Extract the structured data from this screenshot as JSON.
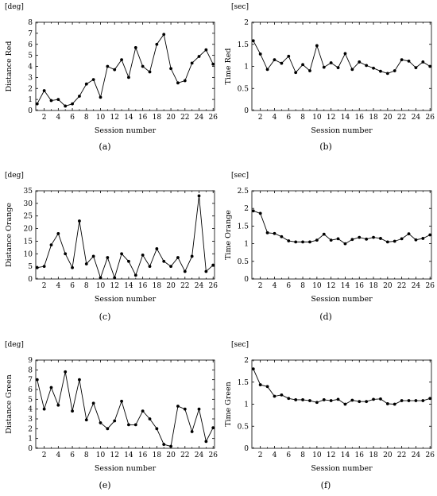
{
  "chart_data": [
    {
      "type": "line",
      "caption": "(a)",
      "unit": "[deg]",
      "ylabel": "Distance Red",
      "xlabel": "Session number",
      "x": [
        1,
        2,
        3,
        4,
        5,
        6,
        7,
        8,
        9,
        10,
        11,
        12,
        13,
        14,
        15,
        16,
        17,
        18,
        19,
        20,
        21,
        22,
        23,
        24,
        25,
        26
      ],
      "values": [
        0.6,
        1.8,
        0.9,
        1.0,
        0.4,
        0.6,
        1.3,
        2.4,
        2.8,
        1.2,
        4.0,
        3.7,
        4.6,
        3.0,
        5.7,
        4.0,
        3.5,
        6.0,
        6.9,
        3.8,
        2.5,
        2.7,
        4.3,
        4.9,
        5.5,
        4.2
      ],
      "xticks": [
        2,
        4,
        6,
        8,
        10,
        12,
        14,
        16,
        18,
        20,
        22,
        24,
        26
      ],
      "yticks": [
        0,
        1,
        2,
        3,
        4,
        5,
        6,
        7,
        8
      ],
      "ytick_labels": [
        "0",
        "1",
        "2",
        "3",
        "4",
        "5",
        "6",
        "7",
        "8"
      ],
      "xlim": [
        0.8,
        26.2
      ],
      "ylim": [
        0,
        8
      ]
    },
    {
      "type": "line",
      "caption": "(b)",
      "unit": "[sec]",
      "ylabel": "Time Red",
      "xlabel": "Session number",
      "x": [
        1,
        2,
        3,
        4,
        5,
        6,
        7,
        8,
        9,
        10,
        11,
        12,
        13,
        14,
        15,
        16,
        17,
        18,
        19,
        20,
        21,
        22,
        23,
        24,
        25,
        26
      ],
      "values": [
        1.58,
        1.28,
        0.93,
        1.15,
        1.07,
        1.23,
        0.86,
        1.04,
        0.9,
        1.47,
        0.98,
        1.08,
        0.97,
        1.29,
        0.93,
        1.1,
        1.02,
        0.96,
        0.89,
        0.84,
        0.9,
        1.15,
        1.12,
        0.97,
        1.1,
        1.0
      ],
      "xticks": [
        2,
        4,
        6,
        8,
        10,
        12,
        14,
        16,
        18,
        20,
        22,
        24,
        26
      ],
      "yticks": [
        0,
        0.5,
        1,
        1.5,
        2
      ],
      "ytick_labels": [
        "0",
        "0.5",
        "1",
        "1.5",
        "2"
      ],
      "xlim": [
        0.8,
        26.2
      ],
      "ylim": [
        0,
        2
      ]
    },
    {
      "type": "line",
      "caption": "(c)",
      "unit": "[deg]",
      "ylabel": "Distance Orange",
      "xlabel": "Session number",
      "x": [
        1,
        2,
        3,
        4,
        5,
        6,
        7,
        8,
        9,
        10,
        11,
        12,
        13,
        14,
        15,
        16,
        17,
        18,
        19,
        20,
        21,
        22,
        23,
        24,
        25,
        26
      ],
      "values": [
        4.5,
        5.0,
        13.5,
        18.0,
        10.0,
        4.5,
        23.0,
        6.0,
        9.0,
        0.5,
        8.5,
        0.5,
        10.0,
        7.0,
        1.5,
        9.5,
        5.0,
        12.0,
        7.0,
        5.0,
        8.5,
        3.0,
        9.0,
        33.0,
        3.0,
        5.5
      ],
      "xticks": [
        2,
        4,
        6,
        8,
        10,
        12,
        14,
        16,
        18,
        20,
        22,
        24,
        26
      ],
      "yticks": [
        0,
        5,
        10,
        15,
        20,
        25,
        30,
        35
      ],
      "ytick_labels": [
        "0",
        "5",
        "10",
        "15",
        "20",
        "25",
        "30",
        "35"
      ],
      "xlim": [
        0.8,
        26.2
      ],
      "ylim": [
        0,
        35
      ]
    },
    {
      "type": "line",
      "caption": "(d)",
      "unit": "[sec]",
      "ylabel": "Time Orange",
      "xlabel": "Session number",
      "x": [
        1,
        2,
        3,
        4,
        5,
        6,
        7,
        8,
        9,
        10,
        11,
        12,
        13,
        14,
        15,
        16,
        17,
        18,
        19,
        20,
        21,
        22,
        23,
        24,
        25,
        26
      ],
      "values": [
        1.93,
        1.86,
        1.31,
        1.29,
        1.2,
        1.08,
        1.05,
        1.05,
        1.05,
        1.1,
        1.27,
        1.1,
        1.14,
        1.0,
        1.12,
        1.18,
        1.13,
        1.18,
        1.15,
        1.05,
        1.07,
        1.14,
        1.28,
        1.11,
        1.15,
        1.25
      ],
      "xticks": [
        2,
        4,
        6,
        8,
        10,
        12,
        14,
        16,
        18,
        20,
        22,
        24,
        26
      ],
      "yticks": [
        0,
        0.5,
        1,
        1.5,
        2,
        2.5
      ],
      "ytick_labels": [
        "0",
        "0.5",
        "1",
        "1.5",
        "2",
        "2.5"
      ],
      "xlim": [
        0.8,
        26.2
      ],
      "ylim": [
        0,
        2.5
      ]
    },
    {
      "type": "line",
      "caption": "(e)",
      "unit": "[deg]",
      "ylabel": "Distance Green",
      "xlabel": "Session number",
      "x": [
        1,
        2,
        3,
        4,
        5,
        6,
        7,
        8,
        9,
        10,
        11,
        12,
        13,
        14,
        15,
        16,
        17,
        18,
        19,
        20,
        21,
        22,
        23,
        24,
        25,
        26
      ],
      "values": [
        7.0,
        4.0,
        6.2,
        4.4,
        7.8,
        3.8,
        7.0,
        2.9,
        4.6,
        2.6,
        2.0,
        2.8,
        4.8,
        2.4,
        2.4,
        3.8,
        3.0,
        2.0,
        0.4,
        0.2,
        4.3,
        4.0,
        1.7,
        4.0,
        0.7,
        2.1
      ],
      "xticks": [
        2,
        4,
        6,
        8,
        10,
        12,
        14,
        16,
        18,
        20,
        22,
        24,
        26
      ],
      "yticks": [
        0,
        1,
        2,
        3,
        4,
        5,
        6,
        7,
        8,
        9
      ],
      "ytick_labels": [
        "0",
        "1",
        "2",
        "3",
        "4",
        "5",
        "6",
        "7",
        "8",
        "9"
      ],
      "xlim": [
        0.8,
        26.2
      ],
      "ylim": [
        0,
        9
      ]
    },
    {
      "type": "line",
      "caption": "(f)",
      "unit": "[sec]",
      "ylabel": "Time Green",
      "xlabel": "Session number",
      "x": [
        1,
        2,
        3,
        4,
        5,
        6,
        7,
        8,
        9,
        10,
        11,
        12,
        13,
        14,
        15,
        16,
        17,
        18,
        19,
        20,
        21,
        22,
        23,
        24,
        25,
        26
      ],
      "values": [
        1.8,
        1.44,
        1.4,
        1.18,
        1.21,
        1.13,
        1.1,
        1.1,
        1.08,
        1.04,
        1.1,
        1.08,
        1.11,
        1.0,
        1.09,
        1.06,
        1.06,
        1.11,
        1.12,
        1.01,
        1.0,
        1.08,
        1.08,
        1.08,
        1.08,
        1.13
      ],
      "xticks": [
        2,
        4,
        6,
        8,
        10,
        12,
        14,
        16,
        18,
        20,
        22,
        24,
        26
      ],
      "yticks": [
        0,
        0.5,
        1,
        1.5,
        2
      ],
      "ytick_labels": [
        "0",
        "0.5",
        "1",
        "1.5",
        "2"
      ],
      "xlim": [
        0.8,
        26.2
      ],
      "ylim": [
        0,
        2
      ]
    }
  ]
}
